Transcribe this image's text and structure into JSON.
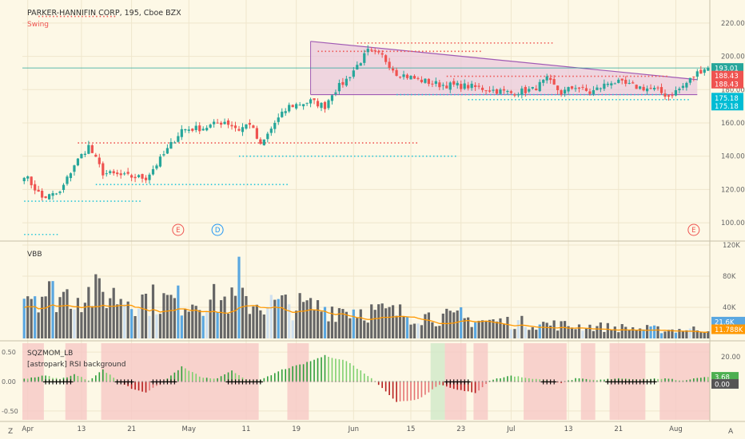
{
  "symbol_title": "PARKER-HANNIFIN CORP, 195, Cboe BZX",
  "colors": {
    "background": "#fdf8e6",
    "up": "#26a69a",
    "down": "#ef5350",
    "grid": "#efe6cc",
    "axis": "#8a8a8a",
    "swing_high": "#ef5350",
    "swing_low": "#26c6da",
    "triangle_fill": "#e8c6dc",
    "triangle_line": "#a05ab4",
    "sqz_up": "#4caf50",
    "sqz_down": "#c62828",
    "volume": "#666666",
    "volume_high": "#5aa7e0",
    "volume_ma": "#ff9800"
  },
  "chart_data": [
    {
      "panel": "price",
      "type": "candlestick",
      "title": "PARKER-HANNIFIN CORP, 195, Cboe BZX",
      "indicator_label": "Swing",
      "ylim": [
        90,
        230
      ],
      "y_ticks": [
        "220.00",
        "200.00",
        "180.00",
        "160.00",
        "140.00",
        "120.00",
        "100.00"
      ],
      "x_ticks": [
        "Apr",
        "13",
        "21",
        "May",
        "11",
        "19",
        "Jun",
        "15",
        "23",
        "Jul",
        "13",
        "21",
        "Aug"
      ],
      "x_tick_index": [
        1,
        16,
        30,
        46,
        62,
        76,
        92,
        108,
        122,
        136,
        152,
        166,
        182
      ],
      "close_anchors": [
        [
          0,
          129
        ],
        [
          5,
          115
        ],
        [
          10,
          118
        ],
        [
          14,
          135
        ],
        [
          18,
          146
        ],
        [
          22,
          130
        ],
        [
          28,
          128
        ],
        [
          34,
          127
        ],
        [
          38,
          138
        ],
        [
          44,
          156
        ],
        [
          50,
          157
        ],
        [
          56,
          161
        ],
        [
          60,
          156
        ],
        [
          63,
          160
        ],
        [
          66,
          146
        ],
        [
          70,
          160
        ],
        [
          74,
          170
        ],
        [
          80,
          173
        ],
        [
          84,
          170
        ],
        [
          86,
          178
        ],
        [
          90,
          186
        ],
        [
          96,
          203
        ],
        [
          100,
          200
        ],
        [
          104,
          190
        ],
        [
          110,
          186
        ],
        [
          116,
          183
        ],
        [
          124,
          182
        ],
        [
          130,
          180
        ],
        [
          136,
          178
        ],
        [
          142,
          180
        ],
        [
          146,
          186
        ],
        [
          150,
          178
        ],
        [
          154,
          182
        ],
        [
          158,
          178
        ],
        [
          164,
          185
        ],
        [
          170,
          182
        ],
        [
          176,
          180
        ],
        [
          180,
          176
        ],
        [
          184,
          182
        ],
        [
          188,
          190
        ],
        [
          190,
          193
        ]
      ],
      "price_badges": [
        {
          "label": "193.01",
          "value": 193.01,
          "color": "#26a69a"
        },
        {
          "label": "188.43",
          "value": 188.43,
          "color": "#ef5350"
        },
        {
          "label": "188.43",
          "value": 183.6,
          "color": "#ef5350"
        },
        {
          "label": "175.18",
          "value": 175.18,
          "color": "#00bcd4"
        },
        {
          "label": "175.18",
          "value": 170.4,
          "color": "#00bcd4"
        }
      ],
      "swing_highs": [
        [
          4,
          26,
          224
        ],
        [
          15,
          110,
          148
        ],
        [
          82,
          128,
          203
        ],
        [
          93,
          148,
          208
        ],
        [
          118,
          180,
          188
        ]
      ],
      "swing_lows": [
        [
          0,
          10,
          93
        ],
        [
          0,
          33,
          113
        ],
        [
          20,
          74,
          123
        ],
        [
          60,
          121,
          140
        ],
        [
          104,
          180,
          177
        ],
        [
          124,
          186,
          174
        ]
      ],
      "triangle": {
        "start": 80,
        "end": 188,
        "top_start": 209,
        "top_end": 186,
        "bottom": 177
      },
      "event_markers": [
        {
          "label": "E",
          "index": 43
        },
        {
          "label": "D",
          "index": 54
        },
        {
          "label": "E",
          "index": 187
        }
      ]
    },
    {
      "panel": "volume",
      "type": "bar",
      "title": "VBB",
      "ylim": [
        0,
        120000
      ],
      "y_ticks": [
        "120K",
        "80K",
        "40K"
      ],
      "badges": [
        {
          "label": "21.6K",
          "value": 21600,
          "color": "#5aa7e0"
        },
        {
          "label": "11.788K",
          "value": 11788,
          "color": "#ff9800"
        }
      ],
      "anchors": [
        [
          0,
          62000
        ],
        [
          10,
          56000
        ],
        [
          20,
          58000
        ],
        [
          30,
          52000
        ],
        [
          40,
          48000
        ],
        [
          50,
          50000
        ],
        [
          60,
          47000
        ],
        [
          70,
          44000
        ],
        [
          80,
          40000
        ],
        [
          90,
          38000
        ],
        [
          100,
          34000
        ],
        [
          110,
          30000
        ],
        [
          120,
          26000
        ],
        [
          130,
          22000
        ],
        [
          140,
          20000
        ],
        [
          150,
          17000
        ],
        [
          160,
          15000
        ],
        [
          170,
          13000
        ],
        [
          180,
          11000
        ],
        [
          190,
          12000
        ]
      ],
      "spikes": [
        {
          "index": 60,
          "value": 105000
        },
        {
          "index": 43,
          "value": 68000
        },
        {
          "index": 122,
          "value": 40000
        }
      ]
    },
    {
      "panel": "momentum",
      "type": "bar",
      "title": "SQZMOM_LB",
      "subtitle": "[astropark] RSI background",
      "ylim": [
        -0.65,
        0.65
      ],
      "y_ticks": [
        "0.50",
        "0.00",
        "-0.50"
      ],
      "badges": [
        {
          "label": "3.68",
          "value": 0.08,
          "color": "#4caf50"
        },
        {
          "label": "0.00",
          "value": -0.04,
          "color": "#555555"
        }
      ],
      "right_scale_label": "20.00",
      "anchors": [
        [
          0,
          0.05
        ],
        [
          6,
          0.1
        ],
        [
          10,
          0.04
        ],
        [
          14,
          0.12
        ],
        [
          18,
          0.02
        ],
        [
          22,
          0.2
        ],
        [
          26,
          0.02
        ],
        [
          30,
          -0.12
        ],
        [
          34,
          -0.18
        ],
        [
          38,
          -0.05
        ],
        [
          44,
          0.25
        ],
        [
          50,
          0.06
        ],
        [
          54,
          0.05
        ],
        [
          58,
          0.18
        ],
        [
          62,
          0.04
        ],
        [
          66,
          0.02
        ],
        [
          72,
          0.2
        ],
        [
          78,
          0.3
        ],
        [
          84,
          0.44
        ],
        [
          90,
          0.35
        ],
        [
          96,
          0.1
        ],
        [
          100,
          -0.1
        ],
        [
          104,
          -0.35
        ],
        [
          110,
          -0.3
        ],
        [
          116,
          -0.05
        ],
        [
          122,
          -0.15
        ],
        [
          126,
          -0.2
        ],
        [
          130,
          0.02
        ],
        [
          136,
          0.1
        ],
        [
          142,
          0.05
        ],
        [
          146,
          0.02
        ],
        [
          150,
          -0.02
        ],
        [
          154,
          0.05
        ],
        [
          160,
          0.02
        ],
        [
          166,
          0.06
        ],
        [
          172,
          0.04
        ],
        [
          178,
          0.05
        ],
        [
          184,
          0.02
        ],
        [
          190,
          0.08
        ]
      ],
      "squeeze_ranges": [
        [
          6,
          13
        ],
        [
          26,
          30
        ],
        [
          36,
          42
        ],
        [
          57,
          66
        ],
        [
          118,
          124
        ],
        [
          145,
          148
        ],
        [
          163,
          176
        ]
      ],
      "rsi_background": [
        [
          0,
          6,
          "#f6c8c5"
        ],
        [
          12,
          18,
          "#f6c8c5"
        ],
        [
          22,
          66,
          "#f6c8c5"
        ],
        [
          74,
          80,
          "#f6c8c5"
        ],
        [
          114,
          118,
          "#cfe8c8"
        ],
        [
          118,
          124,
          "#f6c8c5"
        ],
        [
          126,
          130,
          "#f6c8c5"
        ],
        [
          140,
          152,
          "#f6c8c5"
        ],
        [
          156,
          160,
          "#f6c8c5"
        ],
        [
          164,
          174,
          "#f6c8c5"
        ],
        [
          178,
          192,
          "#f6c8c5"
        ]
      ]
    }
  ]
}
